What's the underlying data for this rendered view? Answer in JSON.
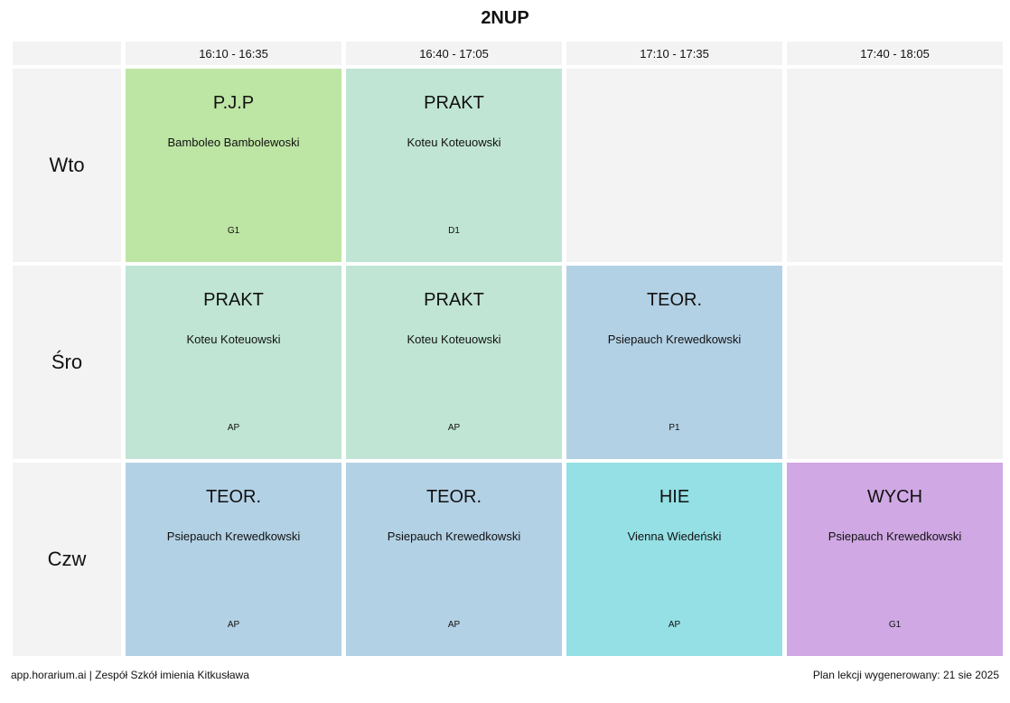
{
  "title": "2NUP",
  "times": [
    "16:10 - 16:35",
    "16:40 - 17:05",
    "17:10 - 17:35",
    "17:40 - 18:05"
  ],
  "days": [
    {
      "label": "Wto",
      "cells": [
        {
          "subject": "P.J.P",
          "teacher": "Bamboleo Bambolewoski",
          "room": "G1",
          "color": "#bde5a4"
        },
        {
          "subject": "PRAKT",
          "teacher": "Koteu Koteuowski",
          "room": "D1",
          "color": "#c0e5d4"
        },
        null,
        null
      ]
    },
    {
      "label": "Śro",
      "cells": [
        {
          "subject": "PRAKT",
          "teacher": "Koteu Koteuowski",
          "room": "AP",
          "color": "#c0e5d4"
        },
        {
          "subject": "PRAKT",
          "teacher": "Koteu Koteuowski",
          "room": "AP",
          "color": "#c0e5d4"
        },
        {
          "subject": "TEOR.",
          "teacher": "Psiepauch Krewedkowski",
          "room": "P1",
          "color": "#b3d1e5"
        },
        null
      ]
    },
    {
      "label": "Czw",
      "cells": [
        {
          "subject": "TEOR.",
          "teacher": "Psiepauch Krewedkowski",
          "room": "AP",
          "color": "#b3d1e5"
        },
        {
          "subject": "TEOR.",
          "teacher": "Psiepauch Krewedkowski",
          "room": "AP",
          "color": "#b3d1e5"
        },
        {
          "subject": "HIE",
          "teacher": "Vienna Wiedeński",
          "room": "AP",
          "color": "#94e0e5"
        },
        {
          "subject": "WYCH",
          "teacher": "Psiepauch Krewedkowski",
          "room": "G1",
          "color": "#cfa8e4"
        }
      ]
    }
  ],
  "footer": {
    "left": "app.horarium.ai | Zespół Szkół imienia Kitkusława",
    "right": "Plan lekcji wygenerowany: 21 sie 2025"
  }
}
